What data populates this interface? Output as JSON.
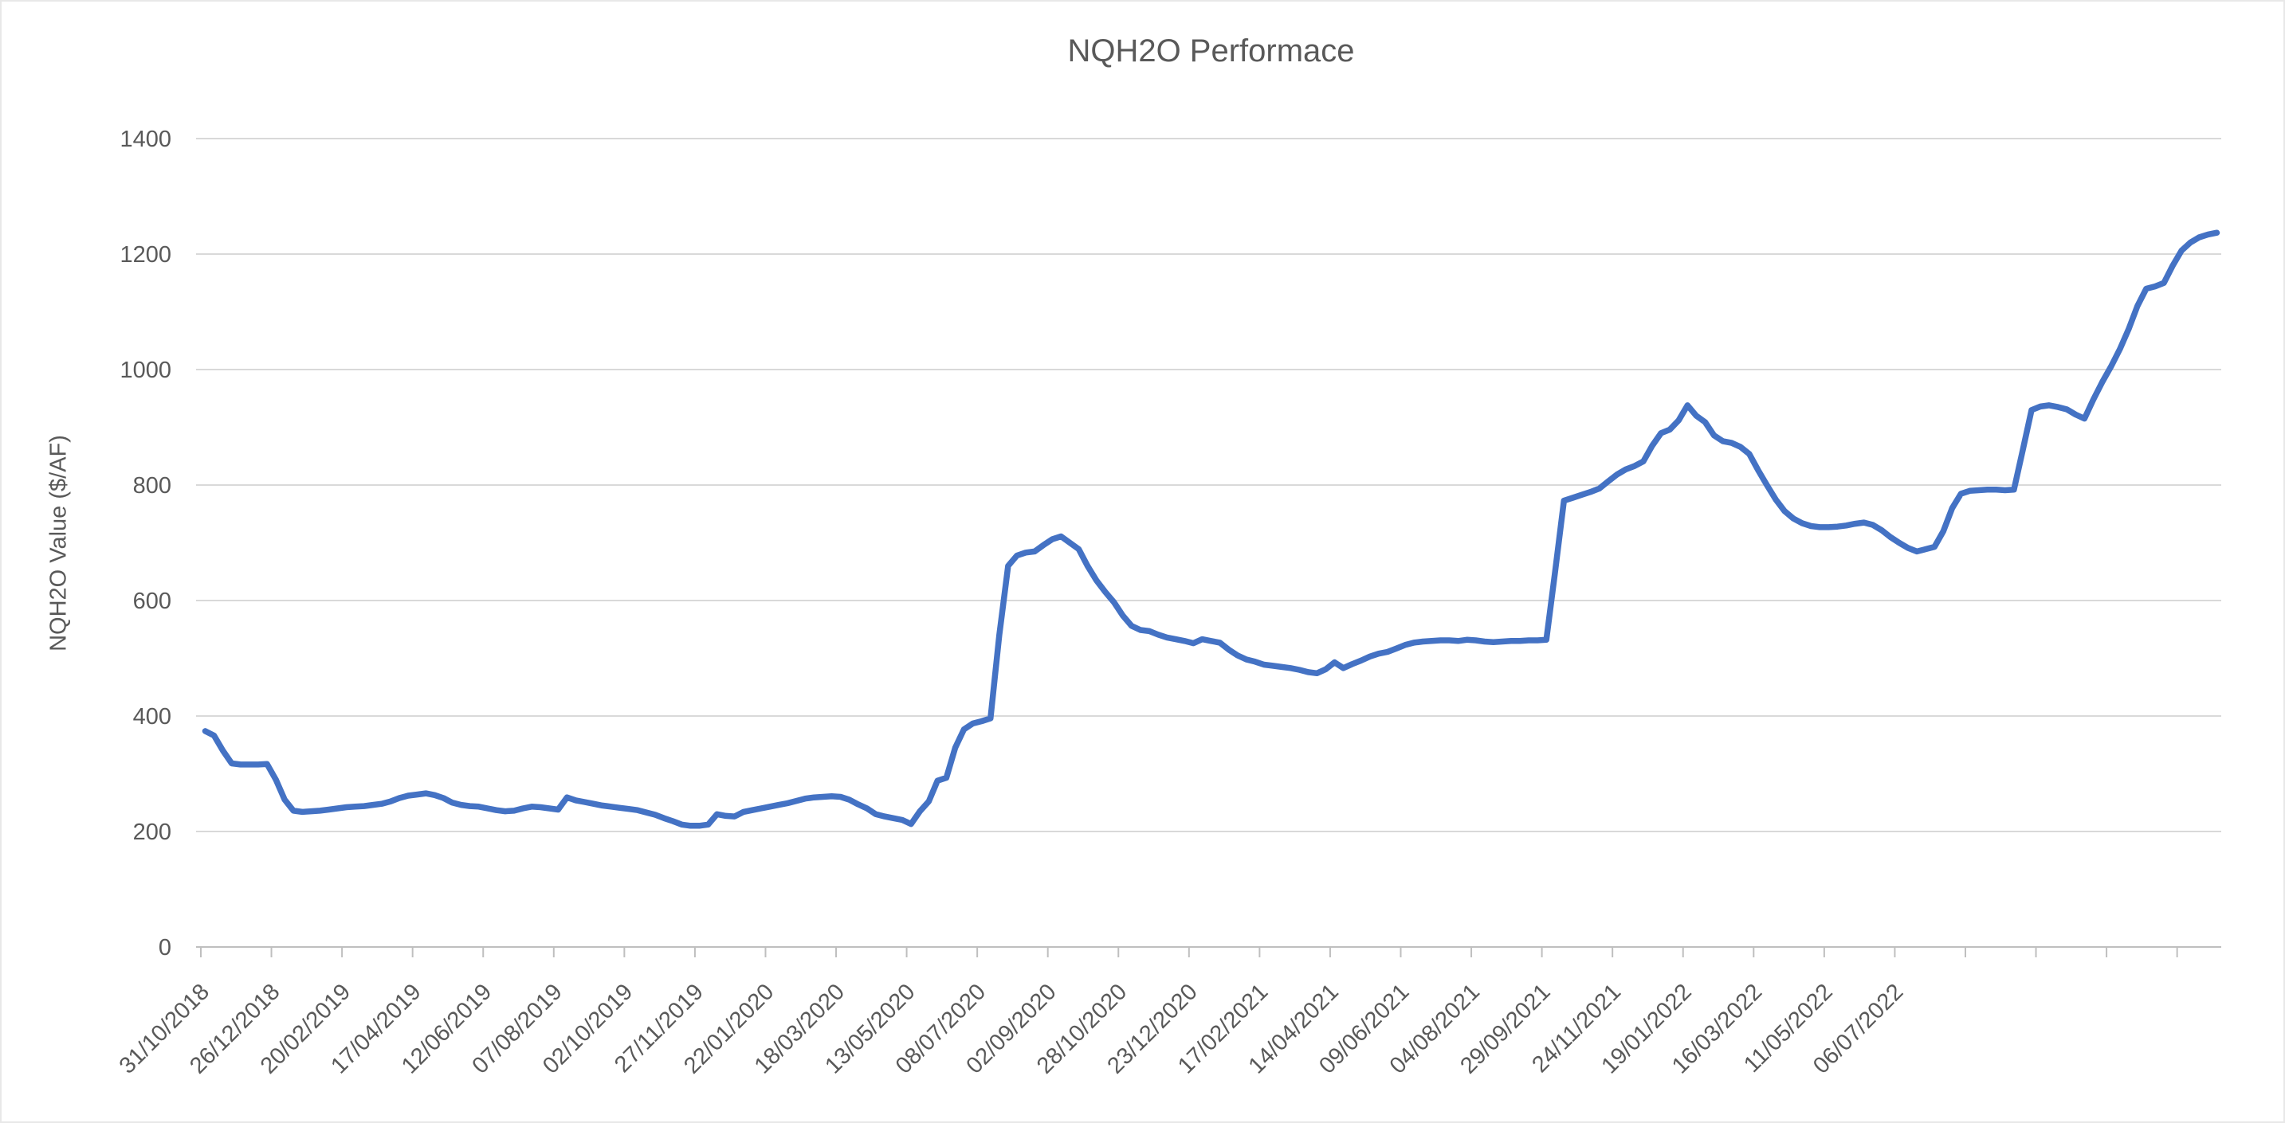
{
  "chart_data": {
    "type": "line",
    "title": "NQH2O Performace",
    "xlabel": "",
    "ylabel": "NQH2O Value ($/AF)",
    "ylim": [
      0,
      1400
    ],
    "y_ticks": [
      0,
      200,
      400,
      600,
      800,
      1000,
      1200,
      1400
    ],
    "grid": true,
    "legend": false,
    "x_label_interval": 8,
    "x_tick_labels": [
      "31/10/2018",
      "26/12/2018",
      "20/02/2019",
      "17/04/2019",
      "12/06/2019",
      "07/08/2019",
      "02/10/2019",
      "27/11/2019",
      "22/01/2020",
      "18/03/2020",
      "13/05/2020",
      "08/07/2020",
      "02/09/2020",
      "28/10/2020",
      "23/12/2020",
      "17/02/2021",
      "14/04/2021",
      "09/06/2021",
      "04/08/2021",
      "29/09/2021",
      "24/11/2021",
      "19/01/2022",
      "16/03/2022",
      "11/05/2022",
      "06/07/2022"
    ],
    "series": [
      {
        "name": "NQH2O",
        "color": "#4472C4",
        "values": [
          374,
          366,
          340,
          318,
          316,
          316,
          316,
          317,
          290,
          255,
          236,
          234,
          235,
          236,
          238,
          240,
          242,
          243,
          244,
          246,
          248,
          252,
          258,
          262,
          264,
          266,
          263,
          258,
          250,
          246,
          244,
          243,
          240,
          237,
          235,
          236,
          240,
          243,
          242,
          240,
          238,
          259,
          254,
          251,
          248,
          245,
          243,
          241,
          239,
          237,
          233,
          229,
          223,
          218,
          212,
          210,
          210,
          212,
          230,
          227,
          226,
          234,
          237,
          240,
          243,
          246,
          249,
          253,
          257,
          259,
          260,
          261,
          260,
          255,
          247,
          240,
          230,
          226,
          223,
          220,
          213,
          235,
          252,
          288,
          293,
          345,
          377,
          387,
          391,
          396,
          540,
          660,
          678,
          683,
          685,
          696,
          706,
          711,
          700,
          689,
          660,
          635,
          615,
          597,
          574,
          556,
          549,
          547,
          541,
          536,
          533,
          530,
          526,
          533,
          530,
          527,
          515,
          505,
          498,
          494,
          489,
          487,
          485,
          483,
          480,
          476,
          474,
          481,
          493,
          483,
          490,
          496,
          503,
          508,
          511,
          517,
          523,
          527,
          529,
          530,
          531,
          531,
          530,
          532,
          531,
          529,
          528,
          529,
          530,
          530,
          531,
          531,
          532,
          650,
          773,
          778,
          783,
          788,
          794,
          806,
          818,
          827,
          833,
          841,
          868,
          890,
          896,
          912,
          938,
          920,
          909,
          886,
          876,
          873,
          866,
          854,
          826,
          800,
          775,
          755,
          742,
          734,
          729,
          727,
          727,
          728,
          730,
          733,
          735,
          731,
          722,
          710,
          700,
          691,
          685,
          689,
          693,
          720,
          760,
          785,
          790,
          791,
          792,
          792,
          791,
          792,
          860,
          930,
          936,
          938,
          935,
          931,
          922,
          915,
          948,
          978,
          1005,
          1035,
          1070,
          1110,
          1140,
          1144,
          1150,
          1180,
          1206,
          1220,
          1229,
          1234,
          1237
        ]
      }
    ],
    "colors": {
      "line": "#4472C4",
      "gridline": "#D9D9D9",
      "axis": "#BFBFBF",
      "text": "#595959"
    }
  }
}
